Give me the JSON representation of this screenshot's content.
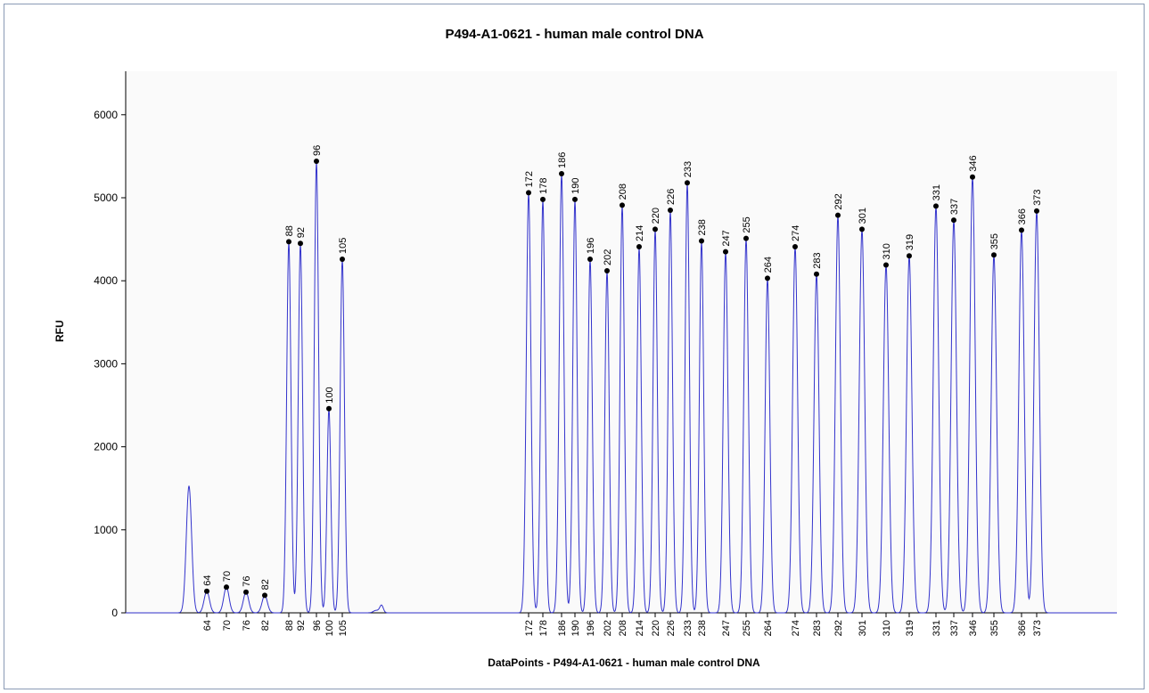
{
  "chart_data": {
    "type": "line",
    "title": "P494-A1-0621 - human male control DNA",
    "xlabel": "DataPoints - P494-A1-0621 - human male control DNA",
    "ylabel": "RFU",
    "ylim": [
      0,
      6500
    ],
    "yticks": [
      0,
      1000,
      2000,
      3000,
      4000,
      5000,
      6000
    ],
    "grid": false,
    "legend": "none",
    "line_color": "#3333cc",
    "marker_color": "#000000",
    "peaks": [
      {
        "label": "64",
        "rfu": 260
      },
      {
        "label": "70",
        "rfu": 310
      },
      {
        "label": "76",
        "rfu": 250
      },
      {
        "label": "82",
        "rfu": 210
      },
      {
        "label": "88",
        "rfu": 4470
      },
      {
        "label": "92",
        "rfu": 4450
      },
      {
        "label": "96",
        "rfu": 5440
      },
      {
        "label": "100",
        "rfu": 2460
      },
      {
        "label": "105",
        "rfu": 4260
      },
      {
        "label": "172",
        "rfu": 5060
      },
      {
        "label": "178",
        "rfu": 4980
      },
      {
        "label": "186",
        "rfu": 5290
      },
      {
        "label": "190",
        "rfu": 4980
      },
      {
        "label": "196",
        "rfu": 4260
      },
      {
        "label": "202",
        "rfu": 4120
      },
      {
        "label": "208",
        "rfu": 4910
      },
      {
        "label": "214",
        "rfu": 4410
      },
      {
        "label": "220",
        "rfu": 4620
      },
      {
        "label": "226",
        "rfu": 4850
      },
      {
        "label": "233",
        "rfu": 5180
      },
      {
        "label": "238",
        "rfu": 4480
      },
      {
        "label": "247",
        "rfu": 4350
      },
      {
        "label": "255",
        "rfu": 4510
      },
      {
        "label": "264",
        "rfu": 4030
      },
      {
        "label": "274",
        "rfu": 4410
      },
      {
        "label": "283",
        "rfu": 4080
      },
      {
        "label": "292",
        "rfu": 4790
      },
      {
        "label": "301",
        "rfu": 4620
      },
      {
        "label": "310",
        "rfu": 4190
      },
      {
        "label": "319",
        "rfu": 4300
      },
      {
        "label": "331",
        "rfu": 4900
      },
      {
        "label": "337",
        "rfu": 4730
      },
      {
        "label": "346",
        "rfu": 5250
      },
      {
        "label": "355",
        "rfu": 4310
      },
      {
        "label": "366",
        "rfu": 4610
      },
      {
        "label": "373",
        "rfu": 4840
      }
    ]
  }
}
